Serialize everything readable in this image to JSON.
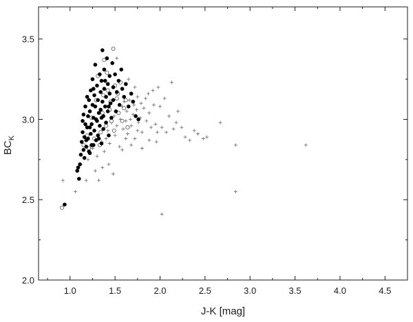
{
  "chart_data": {
    "type": "scatter",
    "xlabel": "J-K [mag]",
    "ylabel": "BC",
    "ylabel_subscript": "K",
    "xlim": [
      0.65,
      4.75
    ],
    "ylim": [
      2.0,
      3.7
    ],
    "xticks": [
      1.0,
      1.5,
      2.0,
      2.5,
      3.0,
      3.5,
      4.0,
      4.5
    ],
    "yticks": [
      2.0,
      2.5,
      3.0,
      3.5
    ],
    "x_tick_labels": [
      "1.0",
      "1.5",
      "2.0",
      "2.5",
      "3.0",
      "3.5",
      "4.0",
      "4.5"
    ],
    "y_tick_labels": [
      "2.0",
      "2.5",
      "3.0",
      "3.5"
    ],
    "grid": false,
    "legend": "none",
    "series": [
      {
        "marker": "filled-circle",
        "color": "#000000",
        "points": [
          [
            0.94,
            2.47
          ],
          [
            1.08,
            2.68
          ],
          [
            1.09,
            2.7
          ],
          [
            1.1,
            2.63
          ],
          [
            1.11,
            2.72
          ],
          [
            1.12,
            2.78
          ],
          [
            1.13,
            2.86
          ],
          [
            1.14,
            2.92
          ],
          [
            1.14,
            2.99
          ],
          [
            1.15,
            3.03
          ],
          [
            1.15,
            2.81
          ],
          [
            1.16,
            2.89
          ],
          [
            1.17,
            2.97
          ],
          [
            1.17,
            3.08
          ],
          [
            1.18,
            2.83
          ],
          [
            1.19,
            3.14
          ],
          [
            1.19,
            2.95
          ],
          [
            1.2,
            3.02
          ],
          [
            1.2,
            2.88
          ],
          [
            1.21,
            3.12
          ],
          [
            1.22,
            3.05
          ],
          [
            1.22,
            2.79
          ],
          [
            1.23,
            2.91
          ],
          [
            1.23,
            3.18
          ],
          [
            1.24,
            2.97
          ],
          [
            1.25,
            3.25
          ],
          [
            1.25,
            3.09
          ],
          [
            1.26,
            2.84
          ],
          [
            1.26,
            3.01
          ],
          [
            1.27,
            3.15
          ],
          [
            1.27,
            2.93
          ],
          [
            1.28,
            3.08
          ],
          [
            1.28,
            3.34
          ],
          [
            1.29,
            2.87
          ],
          [
            1.3,
            3.21
          ],
          [
            1.3,
            2.99
          ],
          [
            1.31,
            3.12
          ],
          [
            1.31,
            2.9
          ],
          [
            1.32,
            3.04
          ],
          [
            1.33,
            3.28
          ],
          [
            1.33,
            2.96
          ],
          [
            1.34,
            3.17
          ],
          [
            1.34,
            3.06
          ],
          [
            1.35,
            2.85
          ],
          [
            1.35,
            3.24
          ],
          [
            1.36,
            3.11
          ],
          [
            1.36,
            3.43
          ],
          [
            1.37,
            2.94
          ],
          [
            1.37,
            3.02
          ],
          [
            1.38,
            3.19
          ],
          [
            1.38,
            3.31
          ],
          [
            1.39,
            3.08
          ],
          [
            1.4,
            2.98
          ],
          [
            1.4,
            3.14
          ],
          [
            1.41,
            3.38
          ],
          [
            1.42,
            3.22
          ],
          [
            1.42,
            3.05
          ],
          [
            1.43,
            2.9
          ],
          [
            1.44,
            3.16
          ],
          [
            1.44,
            3.27
          ],
          [
            1.45,
            3.1
          ],
          [
            1.46,
            3.01
          ],
          [
            1.47,
            3.35
          ],
          [
            1.48,
            3.2
          ],
          [
            1.48,
            3.12
          ],
          [
            1.5,
            3.28
          ],
          [
            1.51,
            3.05
          ],
          [
            1.52,
            3.17
          ],
          [
            1.54,
            3.24
          ],
          [
            1.55,
            3.09
          ],
          [
            1.57,
            3.31
          ],
          [
            1.58,
            3.19
          ],
          [
            1.6,
            3.14
          ],
          [
            1.62,
            3.22
          ],
          [
            1.65,
            3.08
          ],
          [
            1.68,
            3.16
          ],
          [
            1.7,
            3.11
          ],
          [
            1.73,
            3.02
          ],
          [
            1.76,
            3.0
          ],
          [
            1.22,
            2.95
          ],
          [
            1.29,
            3.0
          ],
          [
            1.32,
            2.88
          ],
          [
            1.26,
            3.19
          ],
          [
            1.39,
            3.24
          ],
          [
            1.18,
            2.87
          ],
          [
            1.21,
            2.8
          ],
          [
            1.24,
            2.84
          ],
          [
            1.35,
            3.01
          ],
          [
            1.43,
            3.08
          ],
          [
            1.16,
            2.76
          ]
        ]
      },
      {
        "marker": "open-circle",
        "color": "#555555",
        "points": [
          [
            0.91,
            2.45
          ],
          [
            1.15,
            2.84
          ],
          [
            1.19,
            2.9
          ],
          [
            1.21,
            2.82
          ],
          [
            1.24,
            3.01
          ],
          [
            1.27,
            2.88
          ],
          [
            1.29,
            3.12
          ],
          [
            1.31,
            3.27
          ],
          [
            1.34,
            2.92
          ],
          [
            1.36,
            3.04
          ],
          [
            1.38,
            3.37
          ],
          [
            1.4,
            2.96
          ],
          [
            1.42,
            3.18
          ],
          [
            1.44,
            3.06
          ],
          [
            1.46,
            2.99
          ],
          [
            1.48,
            3.44
          ],
          [
            1.5,
            3.21
          ],
          [
            1.52,
            3.13
          ],
          [
            1.54,
            3.04
          ],
          [
            1.56,
            3.23
          ],
          [
            1.58,
            2.99
          ],
          [
            1.6,
            3.07
          ],
          [
            1.62,
            3.12
          ],
          [
            1.64,
            2.95
          ],
          [
            1.33,
            2.84
          ],
          [
            1.37,
            3.15
          ],
          [
            1.41,
            3.29
          ],
          [
            1.45,
            3.11
          ],
          [
            1.49,
            2.93
          ],
          [
            1.53,
            3.16
          ]
        ]
      },
      {
        "marker": "plus",
        "color": "#777777",
        "points": [
          [
            0.92,
            2.62
          ],
          [
            1.06,
            2.55
          ],
          [
            1.12,
            2.72
          ],
          [
            1.18,
            2.62
          ],
          [
            1.2,
            2.75
          ],
          [
            1.25,
            2.82
          ],
          [
            1.3,
            2.77
          ],
          [
            1.32,
            2.62
          ],
          [
            1.35,
            2.86
          ],
          [
            1.38,
            2.8
          ],
          [
            1.4,
            2.88
          ],
          [
            1.42,
            2.93
          ],
          [
            1.44,
            2.85
          ],
          [
            1.46,
            2.98
          ],
          [
            1.48,
            2.66
          ],
          [
            1.49,
            3.02
          ],
          [
            1.5,
            2.9
          ],
          [
            1.52,
            2.96
          ],
          [
            1.53,
            3.04
          ],
          [
            1.55,
            2.83
          ],
          [
            1.56,
            3.0
          ],
          [
            1.58,
            3.08
          ],
          [
            1.59,
            2.94
          ],
          [
            1.6,
            3.11
          ],
          [
            1.62,
            2.99
          ],
          [
            1.63,
            3.05
          ],
          [
            1.64,
            2.91
          ],
          [
            1.66,
            3.12
          ],
          [
            1.67,
            3.0
          ],
          [
            1.68,
            2.96
          ],
          [
            1.7,
            3.03
          ],
          [
            1.71,
            3.09
          ],
          [
            1.72,
            2.88
          ],
          [
            1.74,
            3.06
          ],
          [
            1.75,
            3.14
          ],
          [
            1.76,
            2.98
          ],
          [
            1.78,
            3.01
          ],
          [
            1.79,
            3.1
          ],
          [
            1.8,
            2.92
          ],
          [
            1.82,
            3.07
          ],
          [
            1.84,
            3.13
          ],
          [
            1.85,
            2.99
          ],
          [
            1.87,
            3.16
          ],
          [
            1.88,
            3.04
          ],
          [
            1.9,
            2.95
          ],
          [
            1.92,
            3.18
          ],
          [
            1.93,
            3.09
          ],
          [
            1.95,
            2.97
          ],
          [
            1.96,
            2.86
          ],
          [
            1.98,
            3.2
          ],
          [
            2.0,
            3.08
          ],
          [
            2.02,
            2.95
          ],
          [
            2.05,
            3.13
          ],
          [
            2.07,
            2.92
          ],
          [
            2.1,
            3.02
          ],
          [
            2.13,
            3.23
          ],
          [
            2.15,
            2.94
          ],
          [
            2.18,
            2.98
          ],
          [
            2.2,
            3.05
          ],
          [
            2.24,
            2.95
          ],
          [
            2.28,
            2.89
          ],
          [
            2.33,
            2.87
          ],
          [
            2.38,
            2.93
          ],
          [
            2.42,
            2.91
          ],
          [
            2.48,
            2.88
          ],
          [
            2.52,
            2.89
          ],
          [
            2.67,
            2.98
          ],
          [
            2.84,
            2.84
          ],
          [
            2.84,
            2.55
          ],
          [
            3.62,
            2.84
          ],
          [
            2.02,
            2.41
          ],
          [
            1.72,
            3.2
          ],
          [
            1.65,
            3.25
          ],
          [
            1.52,
            3.38
          ],
          [
            1.43,
            2.72
          ],
          [
            1.36,
            2.7
          ],
          [
            1.28,
            2.68
          ],
          [
            1.58,
            2.81
          ],
          [
            1.68,
            2.84
          ],
          [
            1.8,
            2.82
          ],
          [
            1.88,
            2.87
          ],
          [
            1.97,
            2.92
          ],
          [
            1.75,
            2.93
          ],
          [
            1.62,
            2.88
          ]
        ]
      }
    ]
  }
}
